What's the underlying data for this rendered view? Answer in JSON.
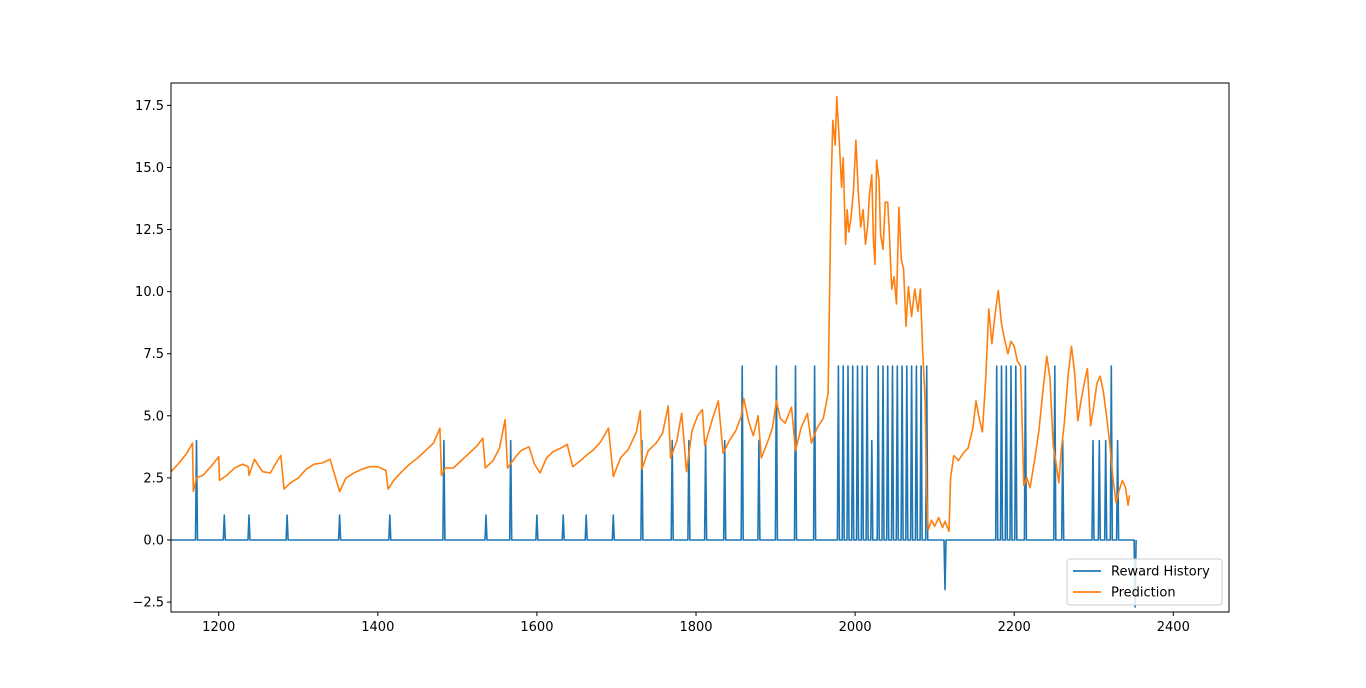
{
  "chart_data": {
    "type": "line",
    "title": "",
    "xlabel": "",
    "ylabel": "",
    "xlim": [
      1140,
      2470
    ],
    "ylim": [
      -2.9,
      18.4
    ],
    "x_ticks": [
      1200,
      1400,
      1600,
      1800,
      2000,
      2200,
      2400
    ],
    "y_ticks": [
      -2.5,
      0.0,
      2.5,
      5.0,
      7.5,
      10.0,
      12.5,
      15.0,
      17.5
    ],
    "y_tick_labels": [
      "−2.5",
      "0.0",
      "2.5",
      "5.0",
      "7.5",
      "10.0",
      "12.5",
      "15.0",
      "17.5"
    ],
    "grid": false,
    "legend_position": "lower-right",
    "colors": {
      "reward": "#1f77b4",
      "prediction": "#ff7f0e"
    },
    "series": [
      {
        "name": "Reward History",
        "x_range": [
          1140,
          2352
        ],
        "baseline": 0,
        "spikes": [
          [
            1172,
            4
          ],
          [
            1207,
            1
          ],
          [
            1238,
            1
          ],
          [
            1286,
            1
          ],
          [
            1352,
            1
          ],
          [
            1415,
            1
          ],
          [
            1483,
            4
          ],
          [
            1536,
            1
          ],
          [
            1567,
            4
          ],
          [
            1600,
            1
          ],
          [
            1633,
            1
          ],
          [
            1662,
            1
          ],
          [
            1696,
            1
          ],
          [
            1732,
            4
          ],
          [
            1770,
            4
          ],
          [
            1791,
            4
          ],
          [
            1812,
            4
          ],
          [
            1836,
            4
          ],
          [
            1858,
            7
          ],
          [
            1879,
            4
          ],
          [
            1901,
            7
          ],
          [
            1925,
            7
          ],
          [
            1949,
            7
          ],
          [
            1979,
            7
          ],
          [
            1985,
            7
          ],
          [
            1991,
            7
          ],
          [
            1997,
            7
          ],
          [
            2003,
            7
          ],
          [
            2009,
            7
          ],
          [
            2015,
            7
          ],
          [
            2021,
            4
          ],
          [
            2029,
            7
          ],
          [
            2035,
            7
          ],
          [
            2041,
            7
          ],
          [
            2047,
            7
          ],
          [
            2053,
            7
          ],
          [
            2059,
            7
          ],
          [
            2065,
            7
          ],
          [
            2071,
            7
          ],
          [
            2077,
            7
          ],
          [
            2083,
            7
          ],
          [
            2090,
            7
          ],
          [
            2113,
            -2
          ],
          [
            2178,
            7
          ],
          [
            2184,
            7
          ],
          [
            2190,
            7
          ],
          [
            2196,
            7
          ],
          [
            2202,
            7
          ],
          [
            2214,
            7
          ],
          [
            2251,
            7
          ],
          [
            2261,
            4
          ],
          [
            2299,
            4
          ],
          [
            2307,
            4
          ],
          [
            2315,
            4
          ],
          [
            2322,
            7
          ],
          [
            2330,
            4
          ],
          [
            2352,
            -2.7
          ]
        ]
      },
      {
        "name": "Prediction",
        "points": [
          [
            1140,
            2.75
          ],
          [
            1150,
            3.1
          ],
          [
            1160,
            3.5
          ],
          [
            1167,
            3.9
          ],
          [
            1168,
            1.95
          ],
          [
            1172,
            2.5
          ],
          [
            1180,
            2.6
          ],
          [
            1190,
            2.95
          ],
          [
            1200,
            3.35
          ],
          [
            1201,
            2.4
          ],
          [
            1210,
            2.6
          ],
          [
            1220,
            2.9
          ],
          [
            1230,
            3.05
          ],
          [
            1237,
            2.95
          ],
          [
            1238,
            2.6
          ],
          [
            1245,
            3.25
          ],
          [
            1255,
            2.75
          ],
          [
            1265,
            2.7
          ],
          [
            1272,
            3.1
          ],
          [
            1278,
            3.4
          ],
          [
            1282,
            2.05
          ],
          [
            1290,
            2.3
          ],
          [
            1300,
            2.5
          ],
          [
            1310,
            2.85
          ],
          [
            1320,
            3.05
          ],
          [
            1330,
            3.1
          ],
          [
            1340,
            3.25
          ],
          [
            1352,
            1.95
          ],
          [
            1360,
            2.5
          ],
          [
            1370,
            2.7
          ],
          [
            1380,
            2.85
          ],
          [
            1390,
            2.95
          ],
          [
            1400,
            2.95
          ],
          [
            1410,
            2.8
          ],
          [
            1413,
            2.05
          ],
          [
            1420,
            2.4
          ],
          [
            1430,
            2.75
          ],
          [
            1440,
            3.05
          ],
          [
            1450,
            3.3
          ],
          [
            1460,
            3.6
          ],
          [
            1470,
            3.9
          ],
          [
            1478,
            4.5
          ],
          [
            1480,
            2.6
          ],
          [
            1485,
            2.9
          ],
          [
            1495,
            2.9
          ],
          [
            1505,
            3.2
          ],
          [
            1515,
            3.5
          ],
          [
            1525,
            3.8
          ],
          [
            1532,
            4.1
          ],
          [
            1535,
            2.9
          ],
          [
            1545,
            3.2
          ],
          [
            1553,
            3.7
          ],
          [
            1560,
            4.85
          ],
          [
            1563,
            2.9
          ],
          [
            1572,
            3.3
          ],
          [
            1580,
            3.6
          ],
          [
            1590,
            3.75
          ],
          [
            1597,
            3.05
          ],
          [
            1604,
            2.7
          ],
          [
            1612,
            3.3
          ],
          [
            1620,
            3.55
          ],
          [
            1630,
            3.7
          ],
          [
            1638,
            3.85
          ],
          [
            1645,
            2.95
          ],
          [
            1655,
            3.2
          ],
          [
            1662,
            3.4
          ],
          [
            1670,
            3.6
          ],
          [
            1680,
            3.95
          ],
          [
            1690,
            4.5
          ],
          [
            1696,
            2.55
          ],
          [
            1705,
            3.3
          ],
          [
            1715,
            3.65
          ],
          [
            1725,
            4.35
          ],
          [
            1730,
            5.2
          ],
          [
            1732,
            2.85
          ],
          [
            1740,
            3.6
          ],
          [
            1750,
            3.9
          ],
          [
            1758,
            4.3
          ],
          [
            1765,
            5.4
          ],
          [
            1768,
            3.3
          ],
          [
            1776,
            4.0
          ],
          [
            1782,
            5.1
          ],
          [
            1788,
            2.75
          ],
          [
            1795,
            4.4
          ],
          [
            1802,
            5.0
          ],
          [
            1808,
            5.25
          ],
          [
            1811,
            3.8
          ],
          [
            1820,
            4.8
          ],
          [
            1828,
            5.6
          ],
          [
            1834,
            3.5
          ],
          [
            1842,
            4.0
          ],
          [
            1850,
            4.4
          ],
          [
            1857,
            5.0
          ],
          [
            1860,
            5.7
          ],
          [
            1866,
            4.8
          ],
          [
            1872,
            4.2
          ],
          [
            1878,
            5.0
          ],
          [
            1882,
            3.3
          ],
          [
            1890,
            3.95
          ],
          [
            1896,
            4.5
          ],
          [
            1901,
            5.6
          ],
          [
            1906,
            4.9
          ],
          [
            1912,
            4.7
          ],
          [
            1920,
            5.35
          ],
          [
            1925,
            3.6
          ],
          [
            1932,
            4.5
          ],
          [
            1940,
            5.1
          ],
          [
            1945,
            3.9
          ],
          [
            1952,
            4.5
          ],
          [
            1960,
            4.9
          ],
          [
            1966,
            5.9
          ],
          [
            1970,
            14.5
          ],
          [
            1972,
            16.9
          ],
          [
            1975,
            15.9
          ],
          [
            1977,
            17.85
          ],
          [
            1980,
            16.1
          ],
          [
            1983,
            14.2
          ],
          [
            1985,
            15.4
          ],
          [
            1988,
            11.9
          ],
          [
            1990,
            13.3
          ],
          [
            1992,
            12.4
          ],
          [
            1995,
            13.0
          ],
          [
            1998,
            14.1
          ],
          [
            2001,
            16.1
          ],
          [
            2004,
            14.0
          ],
          [
            2007,
            12.6
          ],
          [
            2010,
            13.3
          ],
          [
            2013,
            11.9
          ],
          [
            2016,
            12.7
          ],
          [
            2018,
            13.9
          ],
          [
            2021,
            14.7
          ],
          [
            2023,
            12.1
          ],
          [
            2025,
            11.1
          ],
          [
            2027,
            15.3
          ],
          [
            2030,
            14.5
          ],
          [
            2032,
            12.3
          ],
          [
            2035,
            11.7
          ],
          [
            2038,
            13.6
          ],
          [
            2041,
            13.6
          ],
          [
            2043,
            12.4
          ],
          [
            2046,
            10.1
          ],
          [
            2049,
            10.6
          ],
          [
            2052,
            9.5
          ],
          [
            2055,
            13.4
          ],
          [
            2058,
            11.3
          ],
          [
            2061,
            10.9
          ],
          [
            2064,
            8.6
          ],
          [
            2067,
            10.2
          ],
          [
            2071,
            9.0
          ],
          [
            2075,
            10.1
          ],
          [
            2079,
            9.2
          ],
          [
            2082,
            10.1
          ],
          [
            2085,
            7.6
          ],
          [
            2088,
            5.6
          ],
          [
            2090,
            1.6
          ],
          [
            2092,
            0.4
          ],
          [
            2096,
            0.8
          ],
          [
            2100,
            0.55
          ],
          [
            2105,
            0.9
          ],
          [
            2110,
            0.5
          ],
          [
            2113,
            0.75
          ],
          [
            2118,
            0.35
          ],
          [
            2120,
            2.5
          ],
          [
            2124,
            3.4
          ],
          [
            2130,
            3.2
          ],
          [
            2136,
            3.5
          ],
          [
            2142,
            3.7
          ],
          [
            2148,
            4.5
          ],
          [
            2152,
            5.6
          ],
          [
            2156,
            4.9
          ],
          [
            2160,
            4.35
          ],
          [
            2164,
            6.4
          ],
          [
            2168,
            9.3
          ],
          [
            2172,
            7.9
          ],
          [
            2176,
            9.1
          ],
          [
            2180,
            10.05
          ],
          [
            2184,
            8.7
          ],
          [
            2188,
            8.05
          ],
          [
            2192,
            7.5
          ],
          [
            2196,
            8.0
          ],
          [
            2200,
            7.8
          ],
          [
            2204,
            7.2
          ],
          [
            2208,
            7.0
          ],
          [
            2212,
            2.2
          ],
          [
            2216,
            2.5
          ],
          [
            2220,
            2.1
          ],
          [
            2226,
            3.3
          ],
          [
            2231,
            4.4
          ],
          [
            2236,
            6.0
          ],
          [
            2241,
            7.4
          ],
          [
            2245,
            6.5
          ],
          [
            2249,
            3.8
          ],
          [
            2253,
            3.0
          ],
          [
            2256,
            2.3
          ],
          [
            2259,
            3.6
          ],
          [
            2263,
            4.7
          ],
          [
            2268,
            6.7
          ],
          [
            2272,
            7.8
          ],
          [
            2276,
            6.7
          ],
          [
            2280,
            4.8
          ],
          [
            2284,
            5.6
          ],
          [
            2288,
            6.3
          ],
          [
            2292,
            6.9
          ],
          [
            2296,
            4.6
          ],
          [
            2300,
            5.4
          ],
          [
            2304,
            6.3
          ],
          [
            2308,
            6.6
          ],
          [
            2312,
            6.0
          ],
          [
            2316,
            5.0
          ],
          [
            2320,
            3.9
          ],
          [
            2324,
            2.5
          ],
          [
            2328,
            1.5
          ],
          [
            2332,
            2.0
          ],
          [
            2336,
            2.4
          ],
          [
            2340,
            2.1
          ],
          [
            2343,
            1.4
          ],
          [
            2345,
            1.8
          ]
        ]
      }
    ]
  }
}
